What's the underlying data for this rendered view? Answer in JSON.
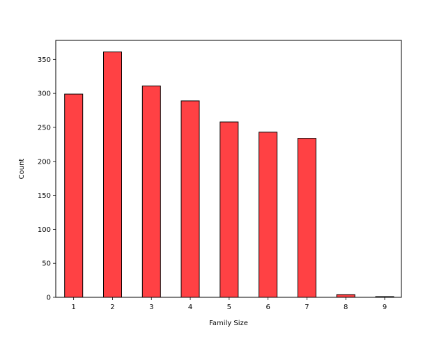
{
  "chart_data": {
    "type": "bar",
    "xlabel": "Family Size",
    "ylabel": "Count",
    "x_ticks": [
      1,
      2,
      3,
      4,
      5,
      6,
      7,
      8,
      9
    ],
    "y_ticks": [
      0,
      50,
      100,
      150,
      200,
      250,
      300,
      350
    ],
    "xlim": [
      0.54,
      9.43
    ],
    "ylim": [
      0,
      378
    ],
    "categories": [
      1,
      2,
      3,
      4,
      5,
      6,
      7,
      8,
      9
    ],
    "values": [
      299,
      361,
      311,
      289,
      258,
      243,
      234,
      4,
      1
    ],
    "bar_color": "#ff4144",
    "edge_color": "#000000",
    "grid": false,
    "legend": "none"
  }
}
